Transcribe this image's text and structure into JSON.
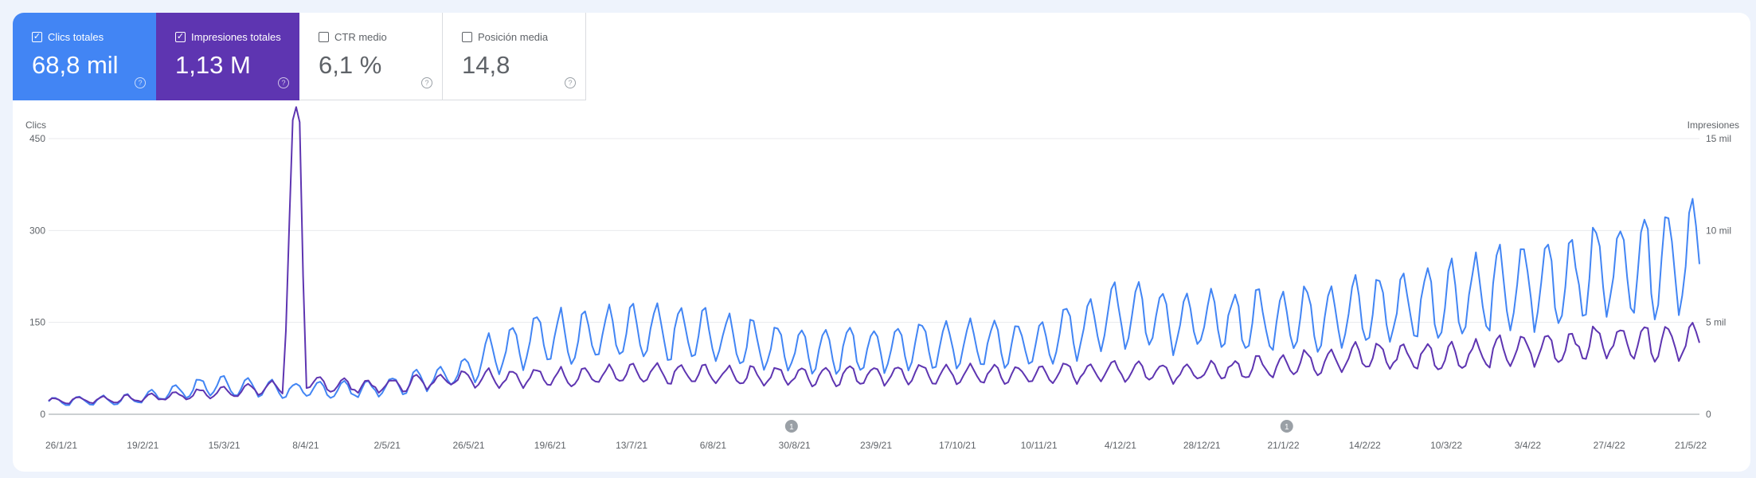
{
  "metrics": [
    {
      "label": "Clics totales",
      "value": "68,8 mil",
      "selected": true,
      "checkbox": "check-icon",
      "help": "help-circle-icon",
      "color": "#4285f4"
    },
    {
      "label": "Impresiones totales",
      "value": "1,13 M",
      "selected": true,
      "checkbox": "check-icon",
      "help": "help-circle-icon",
      "color": "#5e35b1"
    },
    {
      "label": "CTR medio",
      "value": "6,1 %",
      "selected": false,
      "checkbox": "",
      "help": "help-circle-icon"
    },
    {
      "label": "Posición media",
      "value": "14,8",
      "selected": false,
      "checkbox": "",
      "help": "help-circle-icon"
    }
  ],
  "chart_data": {
    "type": "line",
    "x_labels": [
      "26/1/21",
      "19/2/21",
      "15/3/21",
      "8/4/21",
      "2/5/21",
      "26/5/21",
      "19/6/21",
      "13/7/21",
      "6/8/21",
      "30/8/21",
      "23/9/21",
      "17/10/21",
      "10/11/21",
      "4/12/21",
      "28/12/21",
      "21/1/22",
      "14/2/22",
      "10/3/22",
      "3/4/22",
      "27/4/22",
      "21/5/22"
    ],
    "x_range": [
      "2021-01-26",
      "2022-05-21"
    ],
    "y_left": {
      "label": "Clics",
      "ticks": [
        "0",
        "150",
        "300",
        "450"
      ],
      "range": [
        0,
        450
      ]
    },
    "y_right": {
      "label": "Impresiones",
      "ticks": [
        "0",
        "5 mil",
        "10 mil",
        "15 mil"
      ],
      "range": [
        0,
        15000
      ]
    },
    "annotations": [
      {
        "date": "2021-08-30",
        "label": "1"
      },
      {
        "date": "2022-01-21",
        "label": "1"
      }
    ],
    "grid": true,
    "series": [
      {
        "metric": "Clics totales",
        "axis": "left",
        "color": "#5e35b1",
        "keypoints": [
          [
            "2021-01-26",
            22
          ],
          [
            "2021-02-19",
            25
          ],
          [
            "2021-03-15",
            35
          ],
          [
            "2021-04-04",
            45
          ],
          [
            "2021-04-07",
            430
          ],
          [
            "2021-04-09",
            420
          ],
          [
            "2021-04-11",
            50
          ],
          [
            "2021-05-02",
            45
          ],
          [
            "2021-05-26",
            60
          ],
          [
            "2021-06-19",
            60
          ],
          [
            "2021-07-13",
            65
          ],
          [
            "2021-08-06",
            65
          ],
          [
            "2021-08-30",
            62
          ],
          [
            "2021-09-23",
            65
          ],
          [
            "2021-10-17",
            65
          ],
          [
            "2021-11-10",
            65
          ],
          [
            "2021-12-04",
            72
          ],
          [
            "2021-12-28",
            68
          ],
          [
            "2022-01-21",
            82
          ],
          [
            "2022-02-14",
            95
          ],
          [
            "2022-03-10",
            95
          ],
          [
            "2022-04-03",
            105
          ],
          [
            "2022-04-27",
            120
          ],
          [
            "2022-05-21",
            120
          ]
        ]
      },
      {
        "metric": "Impresiones totales",
        "axis": "right",
        "color": "#4285f4",
        "keypoints": [
          [
            "2021-01-26",
            700
          ],
          [
            "2021-02-19",
            800
          ],
          [
            "2021-03-15",
            1600
          ],
          [
            "2021-04-08",
            1300
          ],
          [
            "2021-05-02",
            1400
          ],
          [
            "2021-05-26",
            2300
          ],
          [
            "2021-06-05",
            3500
          ],
          [
            "2021-06-19",
            4200
          ],
          [
            "2021-07-13",
            4400
          ],
          [
            "2021-08-06",
            4300
          ],
          [
            "2021-08-30",
            3500
          ],
          [
            "2021-09-23",
            3600
          ],
          [
            "2021-10-17",
            3800
          ],
          [
            "2021-11-10",
            3800
          ],
          [
            "2021-12-04",
            5600
          ],
          [
            "2021-12-28",
            5000
          ],
          [
            "2022-01-21",
            5200
          ],
          [
            "2022-02-14",
            5600
          ],
          [
            "2022-03-10",
            6300
          ],
          [
            "2022-04-03",
            7000
          ],
          [
            "2022-04-27",
            8000
          ],
          [
            "2022-05-21",
            8800
          ]
        ]
      }
    ]
  }
}
